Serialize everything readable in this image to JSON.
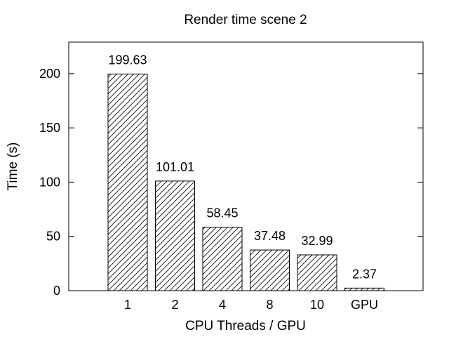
{
  "chart_data": {
    "type": "bar",
    "title": "Render time scene 2",
    "xlabel": "CPU Threads / GPU",
    "ylabel": "Time (s)",
    "categories": [
      "1",
      "2",
      "4",
      "8",
      "10",
      "GPU"
    ],
    "values": [
      199.63,
      101.01,
      58.45,
      37.48,
      32.99,
      2.37
    ],
    "data_labels": [
      "199.63",
      "101.01",
      "58.45",
      "37.48",
      "32.99",
      "2.37"
    ],
    "yticks": [
      0,
      50,
      100,
      150,
      200
    ],
    "ytick_labels": [
      "0",
      "50",
      "100",
      "150",
      "200"
    ],
    "ylim": [
      0,
      229
    ],
    "grid": false,
    "bar_fill": "diagonal-hatch",
    "colors": {
      "bar_stroke": "#000000",
      "background": "#ffffff"
    }
  }
}
